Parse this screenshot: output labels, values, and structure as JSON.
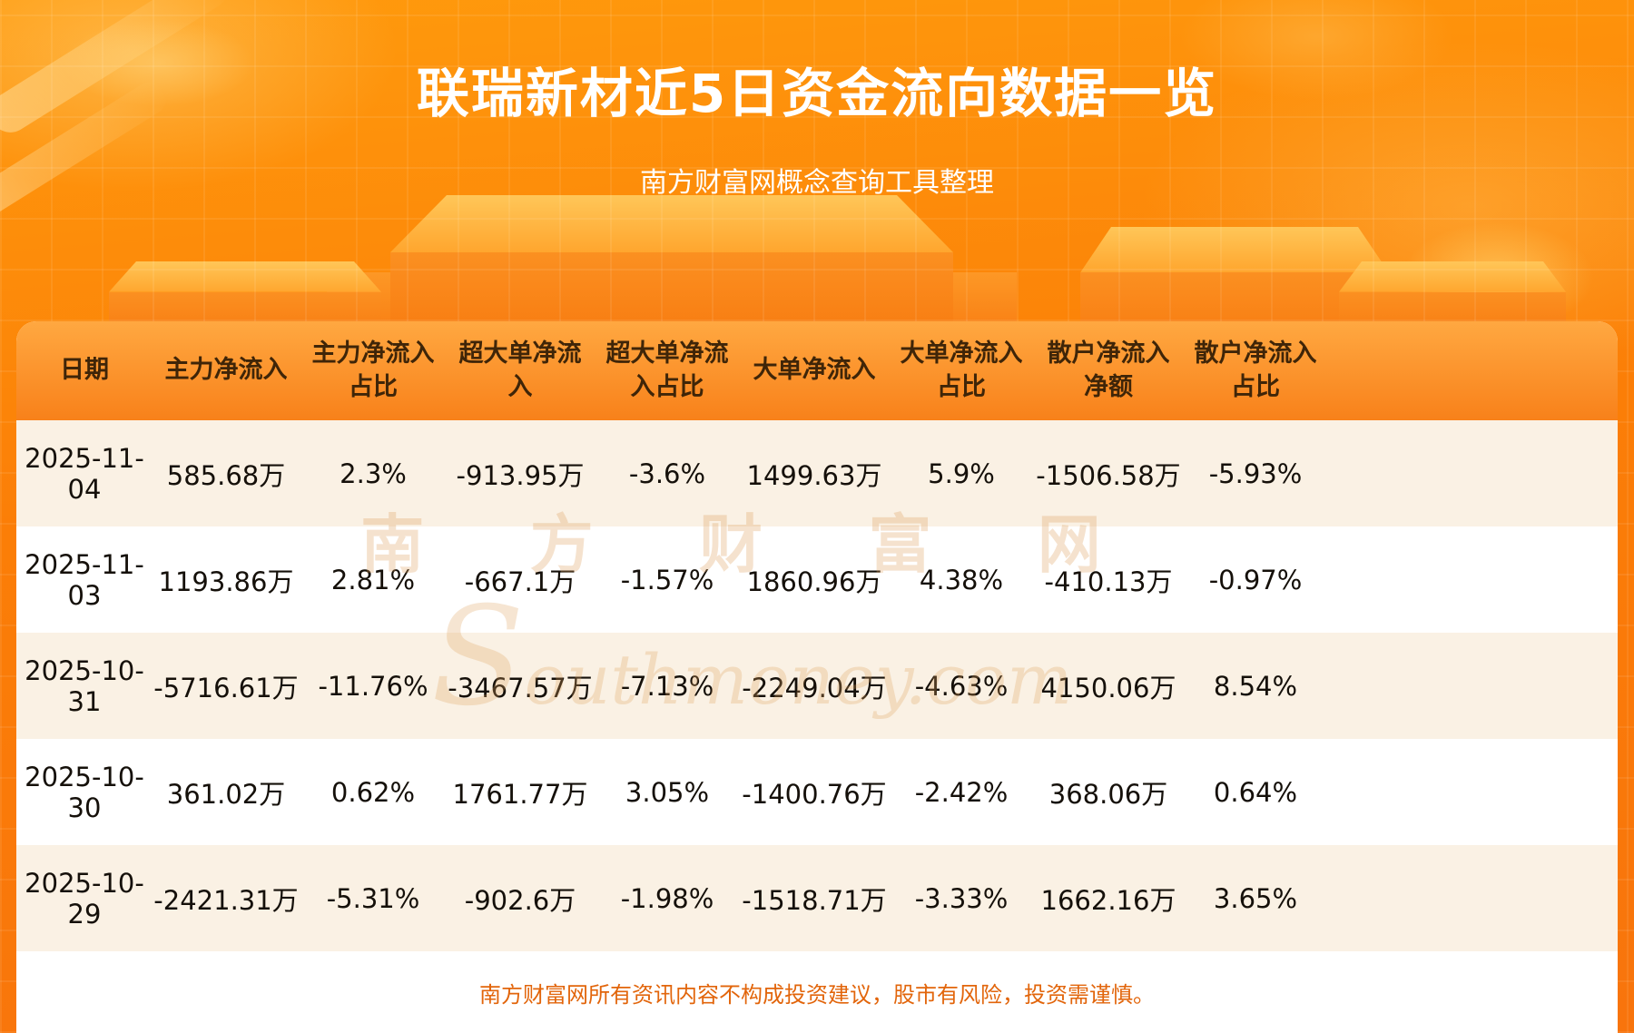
{
  "page": {
    "title": "联瑞新材近5日资金流向数据一览",
    "subtitle": "南方财富网概念查询工具整理",
    "disclaimer": "南方财富网所有资讯内容不构成投资建议，股市有风险，投资需谨慎。"
  },
  "watermark": {
    "cn": "南 方 财 富 网",
    "en": "Southmoney.com"
  },
  "colors": {
    "background_orange": "#fb7e07",
    "header_gradient_top": "#ffa841",
    "header_gradient_bottom": "#f8811a",
    "header_text": "#3f2508",
    "row_alt_background": "#faf1e4",
    "body_text": "#15100a",
    "disclaimer_text": "#e2650b",
    "title_text": "#ffffff"
  },
  "chart_data": {
    "type": "table",
    "title": "联瑞新材近5日资金流向数据一览",
    "columns": [
      "日期",
      "主力净流入",
      "主力净流入占比",
      "超大单净流入",
      "超大单净流入占比",
      "大单净流入",
      "大单净流入占比",
      "散户净流入净额",
      "散户净流入占比"
    ],
    "rows": [
      [
        "2025-11-04",
        "585.68万",
        "2.3%",
        "-913.95万",
        "-3.6%",
        "1499.63万",
        "5.9%",
        "-1506.58万",
        "-5.93%"
      ],
      [
        "2025-11-03",
        "1193.86万",
        "2.81%",
        "-667.1万",
        "-1.57%",
        "1860.96万",
        "4.38%",
        "-410.13万",
        "-0.97%"
      ],
      [
        "2025-10-31",
        "-5716.61万",
        "-11.76%",
        "-3467.57万",
        "-7.13%",
        "-2249.04万",
        "-4.63%",
        "4150.06万",
        "8.54%"
      ],
      [
        "2025-10-30",
        "361.02万",
        "0.62%",
        "1761.77万",
        "3.05%",
        "-1400.76万",
        "-2.42%",
        "368.06万",
        "0.64%"
      ],
      [
        "2025-10-29",
        "-2421.31万",
        "-5.31%",
        "-902.6万",
        "-1.98%",
        "-1518.71万",
        "-3.33%",
        "1662.16万",
        "3.65%"
      ]
    ]
  }
}
